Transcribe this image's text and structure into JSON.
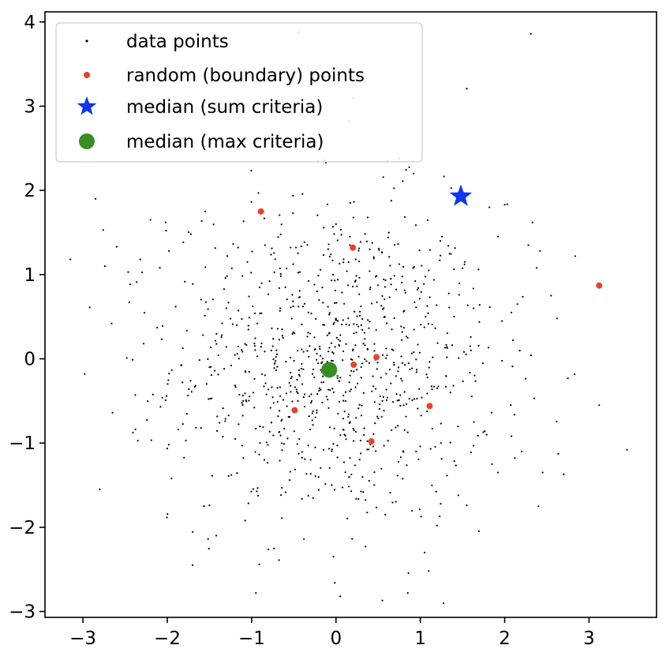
{
  "chart_data": {
    "type": "scatter",
    "title": "",
    "xlabel": "",
    "ylabel": "",
    "xlim": [
      -3.45,
      3.8
    ],
    "ylim": [
      -3.07,
      4.12
    ],
    "x_ticks": [
      -3,
      -2,
      -1,
      0,
      1,
      2,
      3
    ],
    "y_ticks": [
      -3,
      -2,
      -1,
      0,
      1,
      2,
      3,
      4
    ],
    "x_tick_labels": [
      "−3",
      "−2",
      "−1",
      "0",
      "1",
      "2",
      "3"
    ],
    "y_tick_labels": [
      "−3",
      "−2",
      "−1",
      "0",
      "1",
      "2",
      "3",
      "4"
    ],
    "grid": false,
    "legend_position": "upper-left",
    "series": [
      {
        "name": "data points",
        "marker": "small-dot",
        "color": "#000000",
        "note_count": 1000,
        "visible_samples": [
          [
            -3.15,
            1.18
          ],
          [
            -2.98,
            -0.18
          ],
          [
            -2.92,
            0.61
          ],
          [
            -2.85,
            1.9
          ],
          [
            -2.8,
            -1.55
          ],
          [
            -2.76,
            1.53
          ],
          [
            -2.74,
            1.1
          ],
          [
            -2.66,
            0.42
          ],
          [
            -2.65,
            -0.64
          ],
          [
            -2.6,
            1.33
          ],
          [
            -2.48,
            0.01
          ],
          [
            -2.45,
            0.67
          ],
          [
            -2.38,
            -0.43
          ],
          [
            -2.32,
            1.18
          ],
          [
            -2.28,
            0.18
          ],
          [
            -2.2,
            1.65
          ],
          [
            -2.12,
            0.37
          ],
          [
            -2.08,
            -0.57
          ],
          [
            -2.02,
            1.62
          ],
          [
            -1.98,
            1.28
          ],
          [
            -1.95,
            -1.42
          ],
          [
            -1.9,
            0.62
          ],
          [
            -1.82,
            -0.28
          ],
          [
            -1.78,
            -0.97
          ],
          [
            -1.72,
            1.48
          ],
          [
            -1.7,
            -2.45
          ],
          [
            -1.6,
            -0.82
          ],
          [
            -1.55,
            1.75
          ],
          [
            -1.5,
            -1.74
          ],
          [
            -1.42,
            -2.1
          ],
          [
            -0.92,
            1.97
          ],
          [
            -0.95,
            -2.78
          ],
          [
            -0.55,
            -1.44
          ],
          [
            -0.38,
            -2.14
          ],
          [
            -0.21,
            2.35
          ],
          [
            -0.12,
            2.33
          ],
          [
            -0.03,
            -2.35
          ],
          [
            0.05,
            -2.82
          ],
          [
            0.2,
            3.1
          ],
          [
            0.15,
            2.82
          ],
          [
            0.35,
            -2.23
          ],
          [
            0.55,
            -2.87
          ],
          [
            0.61,
            2.35
          ],
          [
            0.75,
            2.38
          ],
          [
            0.92,
            2.2
          ],
          [
            1.05,
            -2.3
          ],
          [
            1.1,
            -2.52
          ],
          [
            1.23,
            -1.87
          ],
          [
            1.45,
            -1.62
          ],
          [
            1.55,
            -1.74
          ],
          [
            1.85,
            -1.25
          ],
          [
            1.92,
            -1.35
          ],
          [
            2.0,
            1.83
          ],
          [
            2.08,
            -0.92
          ],
          [
            2.12,
            -1.18
          ],
          [
            2.15,
            0.65
          ],
          [
            2.2,
            -1.1
          ],
          [
            2.28,
            1.35
          ],
          [
            2.33,
            1.62
          ],
          [
            2.35,
            -0.47
          ],
          [
            2.38,
            1.08
          ],
          [
            2.4,
            -1.75
          ],
          [
            2.42,
            1.28
          ],
          [
            2.45,
            -1.35
          ],
          [
            2.55,
            0.75
          ],
          [
            2.62,
            0.48
          ],
          [
            2.7,
            -1.37
          ],
          [
            3.12,
            -0.55
          ],
          [
            3.45,
            -1.08
          ],
          [
            -0.44,
            3.88
          ],
          [
            2.31,
            3.86
          ],
          [
            -0.08,
            -0.08
          ],
          [
            0.3,
            0.4
          ],
          [
            -0.4,
            -0.3
          ],
          [
            0.55,
            -0.5
          ],
          [
            -0.2,
            0.7
          ],
          [
            0.85,
            0.25
          ],
          [
            -0.75,
            0.15
          ],
          [
            0.1,
            -0.9
          ],
          [
            -0.6,
            0.85
          ],
          [
            0.65,
            0.95
          ],
          [
            -1.1,
            -0.5
          ],
          [
            1.2,
            -0.35
          ],
          [
            -0.3,
            -1.2
          ],
          [
            0.4,
            1.3
          ],
          [
            -1.3,
            0.6
          ],
          [
            1.4,
            0.5
          ],
          [
            -0.9,
            -1.0
          ],
          [
            0.95,
            -1.1
          ],
          [
            -1.5,
            -0.1
          ],
          [
            1.6,
            0.1
          ],
          [
            0.0,
            1.6
          ],
          [
            -0.05,
            -1.5
          ],
          [
            -1.05,
            1.15
          ],
          [
            1.1,
            1.05
          ]
        ]
      },
      {
        "name": "random (boundary) points",
        "marker": "dot",
        "color": "#e8412c",
        "points": [
          [
            -0.89,
            1.75
          ],
          [
            0.2,
            1.32
          ],
          [
            3.12,
            0.87
          ],
          [
            0.48,
            0.02
          ],
          [
            0.21,
            -0.07
          ],
          [
            -0.49,
            -0.61
          ],
          [
            1.11,
            -0.56
          ],
          [
            0.42,
            -0.98
          ]
        ]
      },
      {
        "name": "median (sum criteria)",
        "marker": "star",
        "color": "#1035ef",
        "points": [
          [
            1.48,
            1.93
          ]
        ]
      },
      {
        "name": "median (max criteria)",
        "marker": "circle",
        "color": "#3a8d23",
        "points": [
          [
            -0.08,
            -0.13
          ]
        ]
      }
    ]
  },
  "legend": {
    "items": [
      {
        "label": "data points"
      },
      {
        "label": "random (boundary) points"
      },
      {
        "label": "median (sum criteria)"
      },
      {
        "label": "median (max criteria)"
      }
    ]
  }
}
